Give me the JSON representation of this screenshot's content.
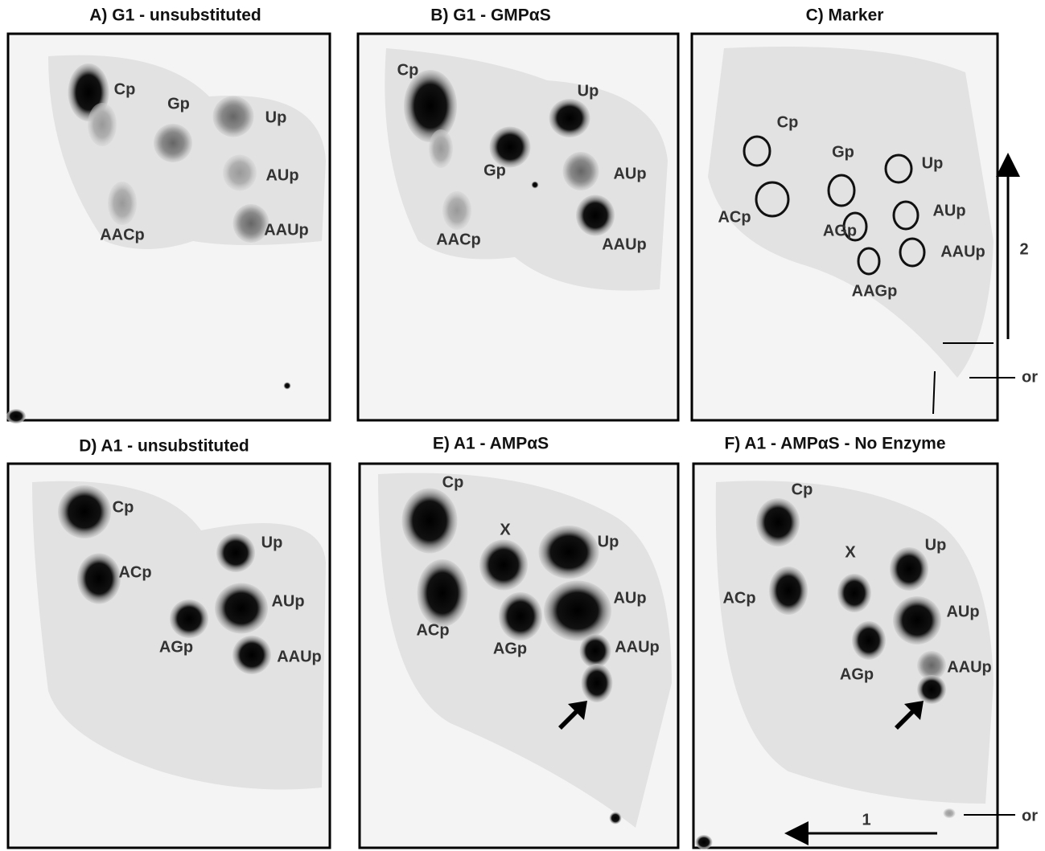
{
  "panels": [
    {
      "title": "A) G1 - unsubstituted",
      "labels": [
        "Cp",
        "Gp",
        "Up",
        "AUp",
        "AACp",
        "AAUp"
      ]
    },
    {
      "title": "B) G1 - GMPαS",
      "labels": [
        "Cp",
        "Up",
        "Gp",
        "AUp",
        "AACp",
        "AAUp"
      ]
    },
    {
      "title": "C) Marker",
      "labels": [
        "Cp",
        "Gp",
        "Up",
        "ACp",
        "AGp",
        "AUp",
        "AAUp",
        "AAGp",
        "2",
        "or"
      ]
    },
    {
      "title": "D) A1 - unsubstituted",
      "labels": [
        "Cp",
        "ACp",
        "Up",
        "AUp",
        "AGp",
        "AAUp"
      ]
    },
    {
      "title": "E) A1 - AMPαS",
      "labels": [
        "Cp",
        "X",
        "Up",
        "AUp",
        "ACp",
        "AGp",
        "AAUp"
      ]
    },
    {
      "title": "F) A1 - AMPαS - No Enzyme",
      "labels": [
        "Cp",
        "X",
        "Up",
        "ACp",
        "AUp",
        "AGp",
        "AAUp",
        "1",
        "or"
      ]
    }
  ]
}
